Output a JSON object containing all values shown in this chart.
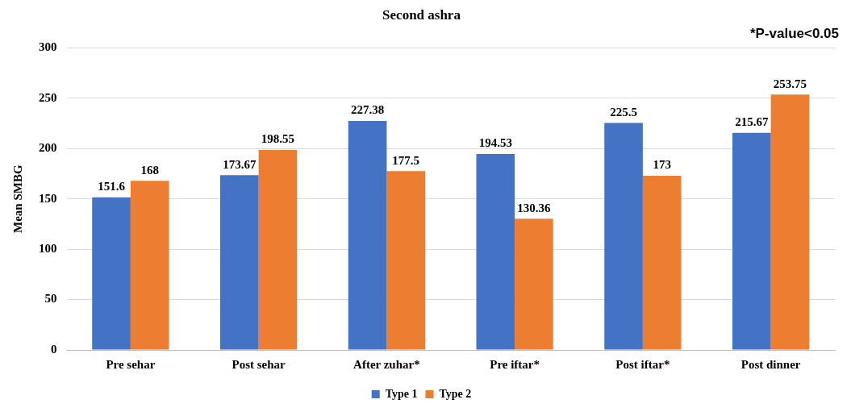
{
  "chart_data": {
    "type": "bar",
    "title": "Second ashra",
    "ylabel": "Mean SMBG",
    "categories": [
      "Pre sehar",
      "Post sehar",
      "After zuhar*",
      "Pre iftar*",
      "Post iftar*",
      "Post dinner"
    ],
    "series": [
      {
        "name": "Type 1",
        "color": "#4472c4",
        "values": [
          151.6,
          173.67,
          227.38,
          194.53,
          225.5,
          215.67
        ]
      },
      {
        "name": "Type 2",
        "color": "#ed7d31",
        "values": [
          168,
          198.55,
          177.5,
          130.36,
          173,
          253.75
        ]
      }
    ],
    "ylim": [
      0,
      300
    ],
    "yticks": [
      0,
      50,
      100,
      150,
      200,
      250,
      300
    ],
    "grid": "y",
    "legend": "bottom",
    "data_labels": true,
    "annotations": [
      "*P-value<0.05"
    ]
  }
}
